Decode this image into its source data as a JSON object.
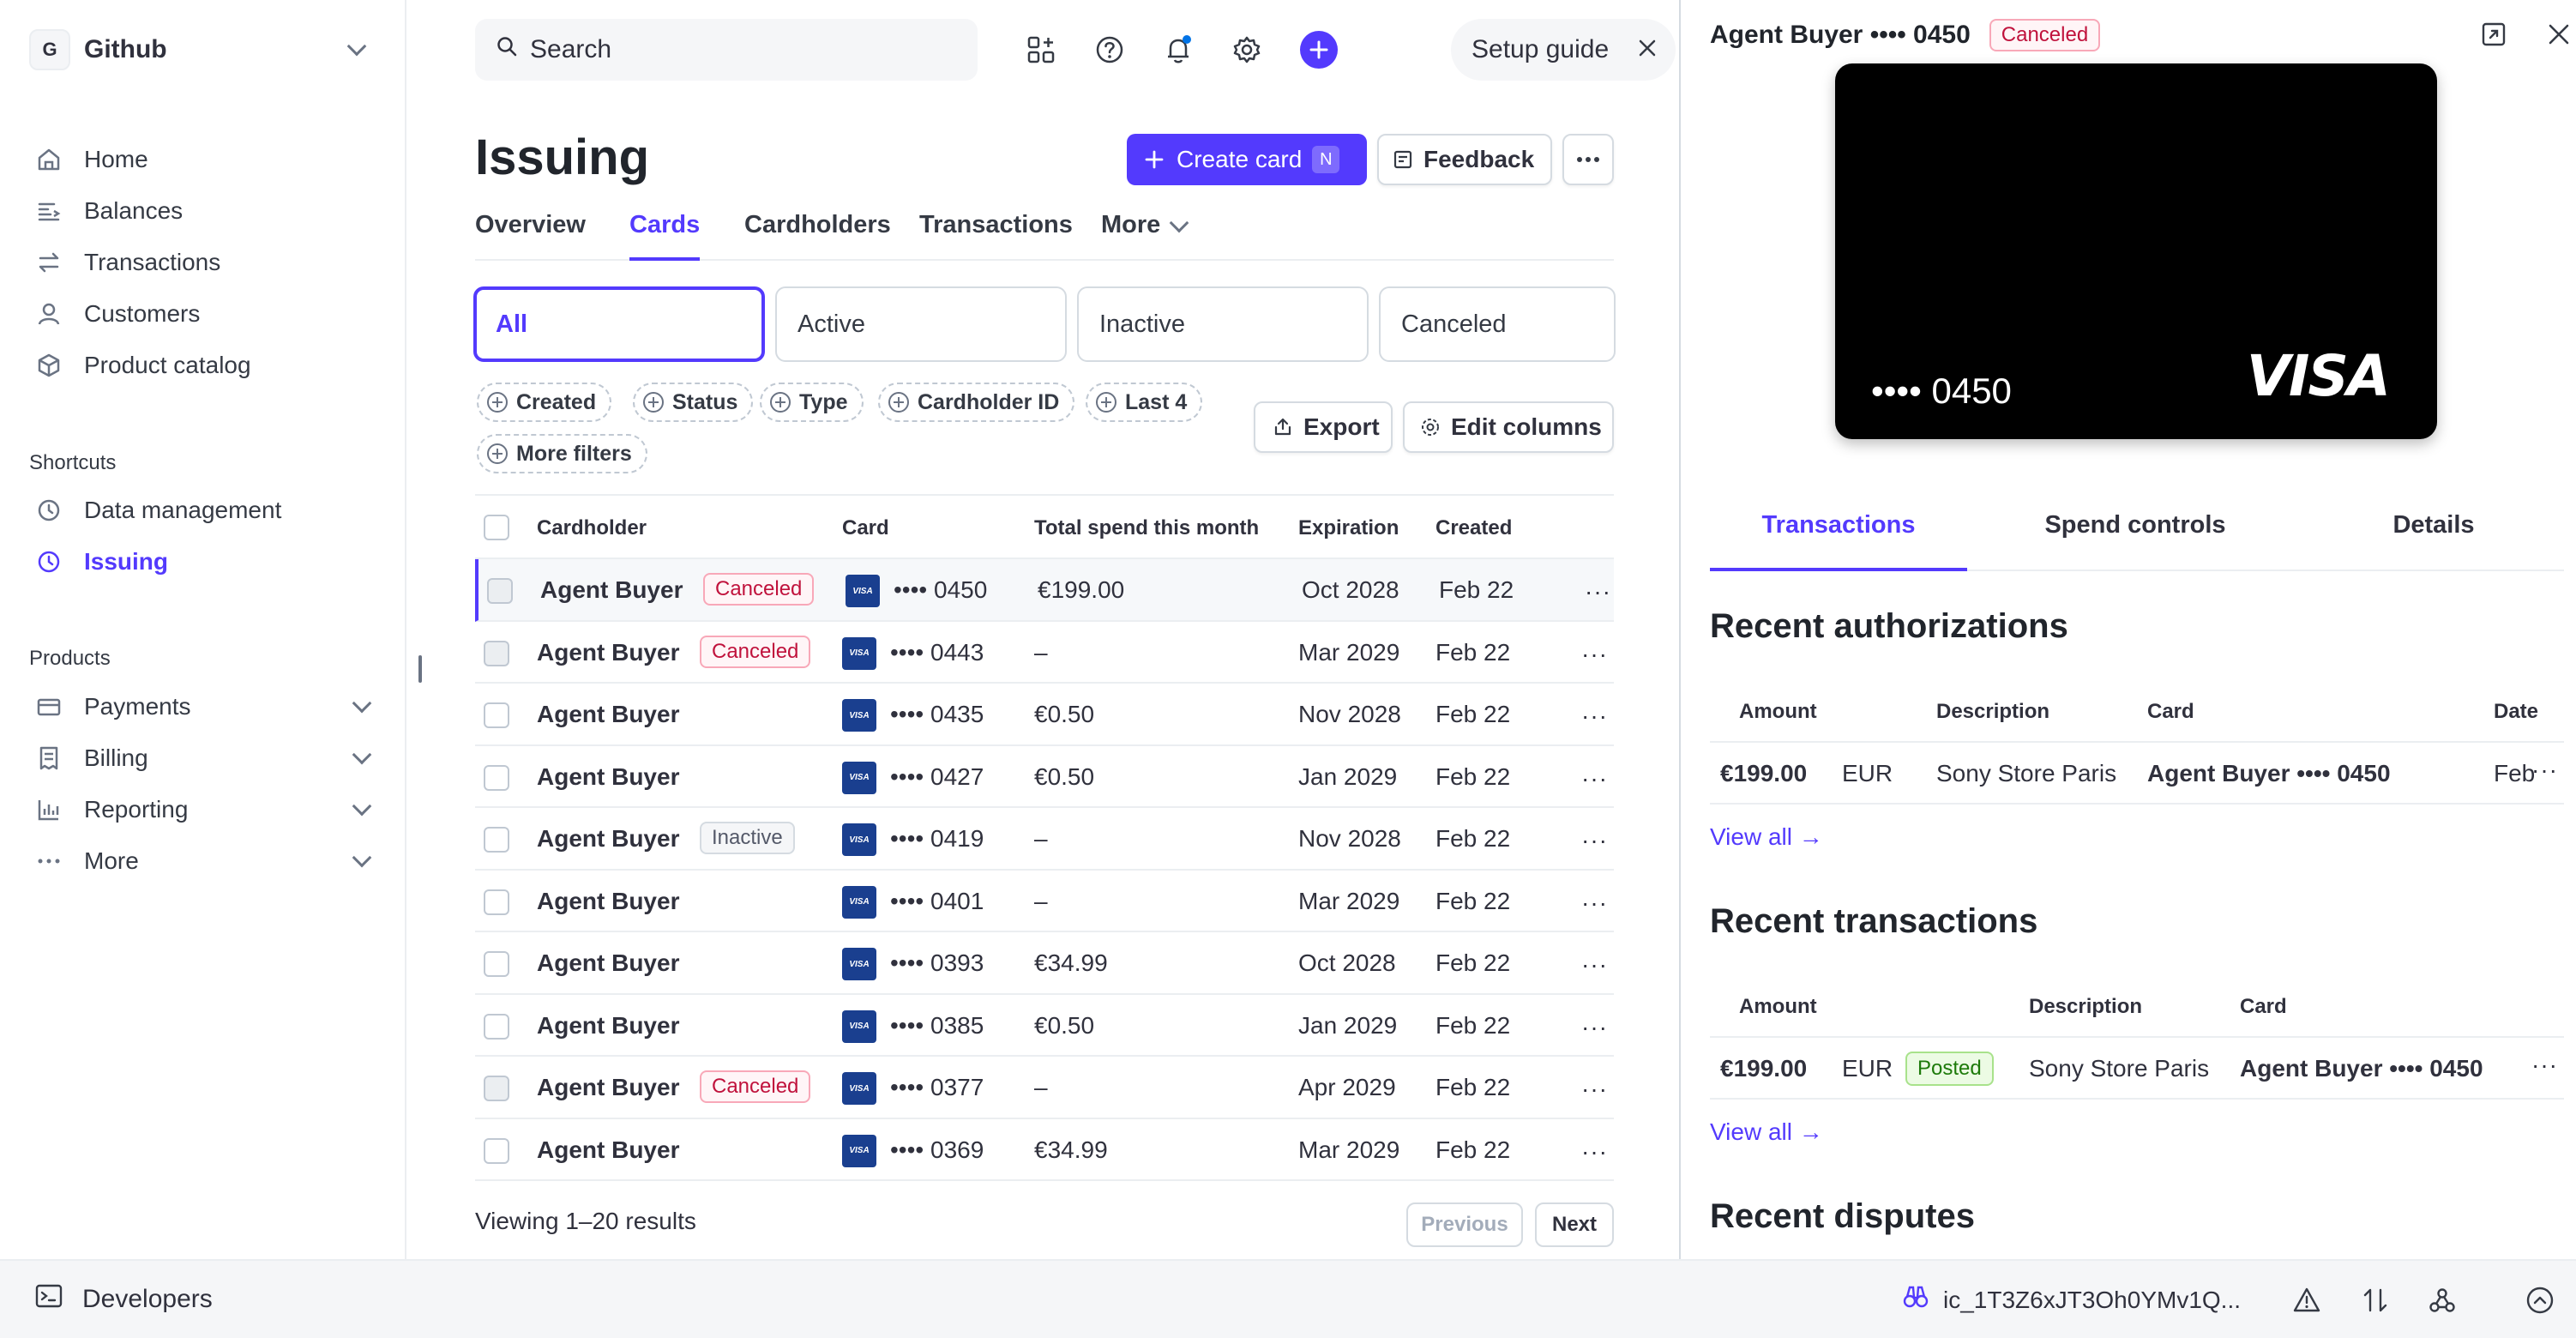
{
  "sidebar": {
    "account_initial": "G",
    "account_name": "Github",
    "nav": [
      {
        "label": "Home",
        "icon": "home-icon"
      },
      {
        "label": "Balances",
        "icon": "balances-icon"
      },
      {
        "label": "Transactions",
        "icon": "transactions-icon"
      },
      {
        "label": "Customers",
        "icon": "customers-icon"
      },
      {
        "label": "Product catalog",
        "icon": "product-catalog-icon"
      }
    ],
    "shortcuts_label": "Shortcuts",
    "shortcuts": [
      {
        "label": "Data management",
        "icon": "clock-icon"
      },
      {
        "label": "Issuing",
        "icon": "clock-icon"
      }
    ],
    "products_label": "Products",
    "products": [
      {
        "label": "Payments",
        "icon": "payments-icon"
      },
      {
        "label": "Billing",
        "icon": "billing-icon"
      },
      {
        "label": "Reporting",
        "icon": "reporting-icon"
      },
      {
        "label": "More",
        "icon": "more-dots-icon"
      }
    ]
  },
  "topbar": {
    "search_placeholder": "Search",
    "setup_guide": "Setup guide"
  },
  "page": {
    "title": "Issuing",
    "create_card": "Create card",
    "create_card_shortcut": "N",
    "feedback": "Feedback",
    "tabs": [
      "Overview",
      "Cards",
      "Cardholders",
      "Transactions",
      "More"
    ],
    "active_tab": "Cards",
    "status_filters": [
      "All",
      "Active",
      "Inactive",
      "Canceled"
    ],
    "chips": [
      "Created",
      "Status",
      "Type",
      "Cardholder ID",
      "Last 4",
      "More filters"
    ],
    "export": "Export",
    "edit_columns": "Edit columns"
  },
  "table": {
    "headers": [
      "Cardholder",
      "Card",
      "Total spend this month",
      "Expiration",
      "Created"
    ],
    "rows": [
      {
        "cardholder": "Agent Buyer",
        "status": "Canceled",
        "card": "•••• 0450",
        "spend": "€199.00",
        "expiration": "Oct 2028",
        "created": "Feb 22"
      },
      {
        "cardholder": "Agent Buyer",
        "status": "Canceled",
        "card": "•••• 0443",
        "spend": "–",
        "expiration": "Mar 2029",
        "created": "Feb 22"
      },
      {
        "cardholder": "Agent Buyer",
        "status": "",
        "card": "•••• 0435",
        "spend": "€0.50",
        "expiration": "Nov 2028",
        "created": "Feb 22"
      },
      {
        "cardholder": "Agent Buyer",
        "status": "",
        "card": "•••• 0427",
        "spend": "€0.50",
        "expiration": "Jan 2029",
        "created": "Feb 22"
      },
      {
        "cardholder": "Agent Buyer",
        "status": "Inactive",
        "card": "•••• 0419",
        "spend": "–",
        "expiration": "Nov 2028",
        "created": "Feb 22"
      },
      {
        "cardholder": "Agent Buyer",
        "status": "",
        "card": "•••• 0401",
        "spend": "–",
        "expiration": "Mar 2029",
        "created": "Feb 22"
      },
      {
        "cardholder": "Agent Buyer",
        "status": "",
        "card": "•••• 0393",
        "spend": "€34.99",
        "expiration": "Oct 2028",
        "created": "Feb 22"
      },
      {
        "cardholder": "Agent Buyer",
        "status": "",
        "card": "•••• 0385",
        "spend": "€0.50",
        "expiration": "Jan 2029",
        "created": "Feb 22"
      },
      {
        "cardholder": "Agent Buyer",
        "status": "Canceled",
        "card": "•••• 0377",
        "spend": "–",
        "expiration": "Apr 2029",
        "created": "Feb 22"
      },
      {
        "cardholder": "Agent Buyer",
        "status": "",
        "card": "•••• 0369",
        "spend": "€34.99",
        "expiration": "Mar 2029",
        "created": "Feb 22"
      }
    ],
    "card_brand": "VISA",
    "viewing": "Viewing 1–20 results",
    "previous": "Previous",
    "next": "Next"
  },
  "panel": {
    "title": "Agent Buyer •••• 0450",
    "status": "Canceled",
    "card_number": "•••• 0450",
    "card_brand": "VISA",
    "tabs": [
      "Transactions",
      "Spend controls",
      "Details"
    ],
    "active_tab": "Transactions",
    "auth_title": "Recent authorizations",
    "auth_headers": [
      "Amount",
      "Description",
      "Card",
      "Date"
    ],
    "auth_row": {
      "amount": "€199.00",
      "currency": "EUR",
      "description": "Sony Store Paris",
      "card": "Agent Buyer •••• 0450",
      "date": "Feb"
    },
    "view_all": "View all →",
    "txn_title": "Recent transactions",
    "txn_headers": [
      "Amount",
      "Description",
      "Card"
    ],
    "txn_row": {
      "amount": "€199.00",
      "currency": "EUR",
      "status": "Posted",
      "description": "Sony Store Paris",
      "card": "Agent Buyer •••• 0450"
    },
    "disputes_title": "Recent disputes"
  },
  "bottombar": {
    "developers": "Developers",
    "object_id": "ic_1T3Z6xJT3Oh0YMv1Q..."
  },
  "colors": {
    "accent": "#533afd",
    "danger": "#c0123c",
    "success": "#1d7a0a",
    "card": "#000000"
  }
}
